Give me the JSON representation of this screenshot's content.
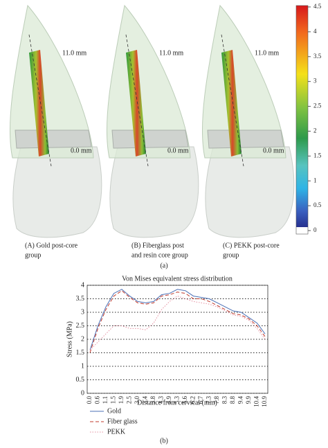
{
  "panel_a": {
    "top_label": "11.0 mm",
    "bottom_label": "0.0 mm",
    "captions": [
      [
        "(A) Gold post-core",
        "group"
      ],
      [
        "(B) Fiberglass post",
        "and resin core group"
      ],
      [
        "(C) PEKK post-core",
        "group"
      ]
    ],
    "panel_label": "(a)",
    "colorbar": {
      "range": [
        0,
        4.5
      ],
      "ticks": [
        0,
        0.5,
        1,
        1.5,
        2,
        2.5,
        3,
        3.5,
        4,
        4.5
      ]
    }
  },
  "chart_data": {
    "type": "line",
    "title": "Von Mises equivalent stress distribution",
    "x_label": "Distance from cervical (mm)",
    "y_label": "Stress (MPa)",
    "categories": [
      "0.0",
      "0.6",
      "1.1",
      "1.5",
      "1.9",
      "2.5",
      "3.0",
      "3.4",
      "3.8",
      "4.3",
      "4.9",
      "5.3",
      "5.6",
      "6.2",
      "6.7",
      "7.3",
      "7.8",
      "8.3",
      "8.8",
      "9.4",
      "9.9",
      "10.4",
      "10.9"
    ],
    "series": [
      {
        "name": "Gold",
        "color": "#4a6fb5",
        "style": "solid",
        "values": [
          1.6,
          2.5,
          3.2,
          3.7,
          3.85,
          3.6,
          3.4,
          3.35,
          3.4,
          3.65,
          3.7,
          3.85,
          3.8,
          3.6,
          3.55,
          3.5,
          3.35,
          3.2,
          3.05,
          3.0,
          2.8,
          2.6,
          2.2
        ]
      },
      {
        "name": "Fiber glass",
        "color": "#c0392b",
        "style": "dashed",
        "values": [
          1.5,
          2.4,
          3.1,
          3.6,
          3.8,
          3.55,
          3.35,
          3.3,
          3.35,
          3.6,
          3.65,
          3.75,
          3.7,
          3.5,
          3.5,
          3.4,
          3.25,
          3.1,
          2.95,
          2.9,
          2.75,
          2.5,
          2.1
        ]
      },
      {
        "name": "PEKK",
        "color": "#e58fa0",
        "style": "dotted",
        "values": [
          1.6,
          1.9,
          2.2,
          2.5,
          2.5,
          2.4,
          2.4,
          2.35,
          2.6,
          3.1,
          3.4,
          3.6,
          3.5,
          3.4,
          3.35,
          3.3,
          3.2,
          3.05,
          2.9,
          2.85,
          2.7,
          2.4,
          2.0
        ]
      }
    ],
    "ylim": [
      0,
      4
    ],
    "yticks": [
      0,
      0.5,
      1,
      1.5,
      2,
      2.5,
      3,
      3.5,
      4
    ],
    "grid": true,
    "panel_label": "(b)"
  }
}
